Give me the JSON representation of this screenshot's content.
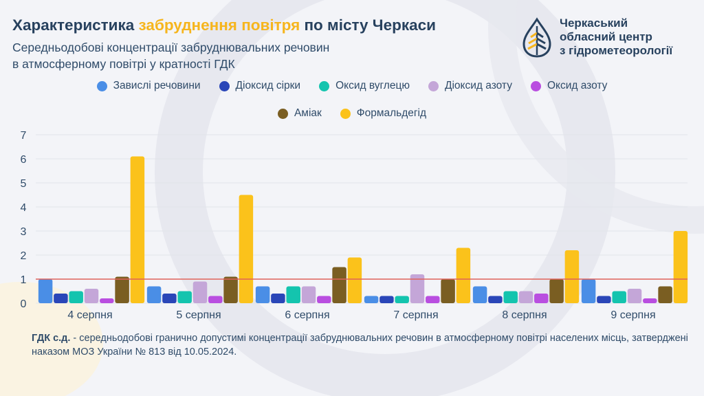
{
  "title": {
    "part1": "Характеристика ",
    "highlight": "забруднення повітря",
    "part2": " по місту Черкаси"
  },
  "subtitle": {
    "line1": "Середньодобові концентрації забруднювальних речовин",
    "line2": "в атмосферному повітрі у кратності ГДК"
  },
  "logo": {
    "line1": "Черкаський",
    "line2": "обласний центр",
    "line3": "з гідрометеорології",
    "icon": "water-drop-leaf-icon"
  },
  "footnote": {
    "term": "ГДК с.д.",
    "text": " - середньодобові гранично допустимі концентрації забруднювальних речовин в атмосферному повітрі населених місць, затверджені наказом МОЗ України № 813 від 10.05.2024."
  },
  "colors": {
    "threshold": "#e0625a",
    "accent": "#f6b51d",
    "brand": "#27415e"
  },
  "chart_data": {
    "type": "bar",
    "categories": [
      "4 серпня",
      "5 серпня",
      "6 серпня",
      "7 серпня",
      "8 серпня",
      "9 серпня"
    ],
    "ylim": [
      0,
      7
    ],
    "yticks": [
      0,
      1,
      2,
      3,
      4,
      5,
      6,
      7
    ],
    "grid": true,
    "legend_position": "top",
    "threshold": 1,
    "series": [
      {
        "name": "Завислі речовини",
        "color": "#4a8ee6",
        "values": [
          1.0,
          0.7,
          0.7,
          0.3,
          0.7,
          1.0
        ]
      },
      {
        "name": "Діоксид сірки",
        "color": "#2a46b8",
        "values": [
          0.4,
          0.4,
          0.4,
          0.3,
          0.3,
          0.3
        ]
      },
      {
        "name": "Оксид вуглецю",
        "color": "#14c4ae",
        "values": [
          0.5,
          0.5,
          0.7,
          0.3,
          0.5,
          0.5
        ]
      },
      {
        "name": "Діоксид азоту",
        "color": "#c4a6d8",
        "values": [
          0.6,
          0.9,
          0.7,
          1.2,
          0.5,
          0.6
        ]
      },
      {
        "name": "Оксид азоту",
        "color": "#b94ee0",
        "values": [
          0.2,
          0.3,
          0.3,
          0.3,
          0.4,
          0.2
        ]
      },
      {
        "name": "Аміак",
        "color": "#7a5e22",
        "values": [
          1.1,
          1.1,
          1.5,
          1.0,
          1.0,
          0.7
        ]
      },
      {
        "name": "Формальдегід",
        "color": "#fbc21b",
        "values": [
          6.1,
          4.5,
          1.9,
          2.3,
          2.2,
          3.0
        ]
      }
    ]
  }
}
